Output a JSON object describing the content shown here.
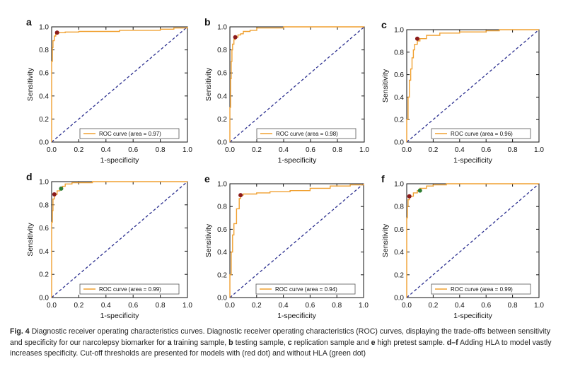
{
  "chart_data": [
    {
      "panel": "a",
      "type": "line",
      "xlabel": "1-specificity",
      "ylabel": "Sensitivity",
      "xlim": [
        0,
        1
      ],
      "ylim": [
        0,
        1
      ],
      "xticks": [
        "0.0",
        "0.2",
        "0.4",
        "0.6",
        "0.8",
        "1.0"
      ],
      "yticks": [
        "0.0",
        "0.2",
        "0.4",
        "0.6",
        "0.8",
        "1.0"
      ],
      "legend": "ROC curve (area = 0.97)",
      "roc": [
        [
          0,
          0
        ],
        [
          0,
          0.7
        ],
        [
          0.005,
          0.82
        ],
        [
          0.01,
          0.88
        ],
        [
          0.02,
          0.92
        ],
        [
          0.03,
          0.94
        ],
        [
          0.05,
          0.95
        ],
        [
          0.1,
          0.955
        ],
        [
          0.2,
          0.96
        ],
        [
          0.5,
          0.97
        ],
        [
          0.8,
          0.98
        ],
        [
          0.9,
          0.99
        ],
        [
          1,
          1
        ]
      ],
      "red_dot": [
        0.04,
        0.95
      ],
      "green_dot": null
    },
    {
      "panel": "b",
      "type": "line",
      "xlabel": "1-specificity",
      "ylabel": "Sensitivity",
      "xlim": [
        0,
        1
      ],
      "ylim": [
        0,
        1
      ],
      "xticks": [
        "0.0",
        "0.2",
        "0.4",
        "0.6",
        "0.8",
        "1.0"
      ],
      "yticks": [
        "0.0",
        "0.2",
        "0.4",
        "0.6",
        "0.8",
        "1.0"
      ],
      "legend": "ROC curve (area = 0.98)",
      "roc": [
        [
          0,
          0
        ],
        [
          0,
          0.3
        ],
        [
          0.005,
          0.55
        ],
        [
          0.01,
          0.7
        ],
        [
          0.015,
          0.8
        ],
        [
          0.02,
          0.85
        ],
        [
          0.03,
          0.89
        ],
        [
          0.04,
          0.91
        ],
        [
          0.06,
          0.93
        ],
        [
          0.08,
          0.94
        ],
        [
          0.1,
          0.96
        ],
        [
          0.15,
          0.97
        ],
        [
          0.2,
          0.99
        ],
        [
          0.4,
          1.0
        ],
        [
          1,
          1
        ]
      ],
      "red_dot": [
        0.04,
        0.91
      ],
      "green_dot": null
    },
    {
      "panel": "c",
      "type": "line",
      "xlabel": "1-specificity",
      "ylabel": "Sensitivity",
      "xlim": [
        0,
        1
      ],
      "ylim": [
        0,
        1
      ],
      "xticks": [
        "0.0",
        "0.2",
        "0.4",
        "0.6",
        "0.8",
        "1.0"
      ],
      "yticks": [
        "0.0",
        "0.2",
        "0.4",
        "0.6",
        "0.8",
        "1.0"
      ],
      "legend": "ROC curve (area = 0.96)",
      "roc": [
        [
          0,
          0
        ],
        [
          0,
          0.2
        ],
        [
          0.01,
          0.4
        ],
        [
          0.02,
          0.55
        ],
        [
          0.03,
          0.65
        ],
        [
          0.04,
          0.75
        ],
        [
          0.05,
          0.82
        ],
        [
          0.06,
          0.87
        ],
        [
          0.08,
          0.9
        ],
        [
          0.1,
          0.92
        ],
        [
          0.15,
          0.95
        ],
        [
          0.25,
          0.97
        ],
        [
          0.4,
          0.98
        ],
        [
          0.6,
          0.99
        ],
        [
          0.7,
          1.0
        ],
        [
          1,
          1
        ]
      ],
      "red_dot": [
        0.08,
        0.92
      ],
      "green_dot": null
    },
    {
      "panel": "d",
      "type": "line",
      "xlabel": "1-specificity",
      "ylabel": "Sensitivity",
      "xlim": [
        0,
        1
      ],
      "ylim": [
        0,
        1
      ],
      "xticks": [
        "0.0",
        "0.2",
        "0.4",
        "0.6",
        "0.8",
        "1.0"
      ],
      "yticks": [
        "0.0",
        "0.2",
        "0.4",
        "0.6",
        "0.8",
        "1.0"
      ],
      "legend": "ROC curve (area = 0.99)",
      "roc": [
        [
          0,
          0
        ],
        [
          0,
          0.65
        ],
        [
          0.005,
          0.75
        ],
        [
          0.01,
          0.85
        ],
        [
          0.02,
          0.89
        ],
        [
          0.04,
          0.92
        ],
        [
          0.06,
          0.94
        ],
        [
          0.08,
          0.96
        ],
        [
          0.1,
          0.98
        ],
        [
          0.15,
          0.99
        ],
        [
          0.3,
          1.0
        ],
        [
          1,
          1
        ]
      ],
      "red_dot": [
        0.02,
        0.89
      ],
      "green_dot": [
        0.07,
        0.94
      ]
    },
    {
      "panel": "e",
      "type": "line",
      "xlabel": "1-specificity",
      "ylabel": "Sensitivity",
      "xlim": [
        0,
        1
      ],
      "ylim": [
        0,
        1
      ],
      "xticks": [
        "0.0",
        "0.2",
        "0.4",
        "0.6",
        "0.8",
        "1.0"
      ],
      "yticks": [
        "0.0",
        "0.2",
        "0.4",
        "0.6",
        "0.8",
        "1.0"
      ],
      "legend": "ROC curve (area = 0.94)",
      "roc": [
        [
          0,
          0
        ],
        [
          0,
          0.2
        ],
        [
          0.01,
          0.4
        ],
        [
          0.02,
          0.55
        ],
        [
          0.03,
          0.65
        ],
        [
          0.05,
          0.78
        ],
        [
          0.07,
          0.87
        ],
        [
          0.08,
          0.9
        ],
        [
          0.1,
          0.91
        ],
        [
          0.2,
          0.92
        ],
        [
          0.3,
          0.93
        ],
        [
          0.45,
          0.94
        ],
        [
          0.6,
          0.96
        ],
        [
          0.75,
          0.98
        ],
        [
          0.9,
          0.99
        ],
        [
          1,
          1
        ]
      ],
      "red_dot": [
        0.08,
        0.9
      ],
      "green_dot": null
    },
    {
      "panel": "f",
      "type": "line",
      "xlabel": "1-specificity",
      "ylabel": "Sensitivity",
      "xlim": [
        0,
        1
      ],
      "ylim": [
        0,
        1
      ],
      "xticks": [
        "0.0",
        "0.2",
        "0.4",
        "0.6",
        "0.8",
        "1.0"
      ],
      "yticks": [
        "0.0",
        "0.2",
        "0.4",
        "0.6",
        "0.8",
        "1.0"
      ],
      "legend": "ROC curve (area = 0.99)",
      "roc": [
        [
          0,
          0
        ],
        [
          0,
          0.7
        ],
        [
          0.005,
          0.8
        ],
        [
          0.01,
          0.86
        ],
        [
          0.02,
          0.89
        ],
        [
          0.05,
          0.92
        ],
        [
          0.08,
          0.94
        ],
        [
          0.1,
          0.96
        ],
        [
          0.15,
          0.98
        ],
        [
          0.2,
          0.99
        ],
        [
          0.3,
          1.0
        ],
        [
          1,
          1
        ]
      ],
      "red_dot": [
        0.02,
        0.89
      ],
      "green_dot": [
        0.1,
        0.94
      ]
    }
  ],
  "colors": {
    "roc": "#f0a030",
    "diagonal": "#2b2f8f",
    "red_dot": "#8b1a1a",
    "green_dot": "#2e7d32",
    "axis": "#111111"
  },
  "caption": {
    "label": "Fig. 4",
    "text_1": " Diagnostic receiver operating characteristics curves. Diagnostic receiver operating characteristics (ROC) curves, displaying the trade-offs between sensitivity and specificity for our narcolepsy biomarker for ",
    "bold_a": "a",
    "text_2": " training sample, ",
    "bold_b": "b",
    "text_3": " testing sample, ",
    "bold_c": "c",
    "text_4": " replication sample and ",
    "bold_e": "e",
    "text_5": " high pretest sample. ",
    "bold_df": "d–f",
    "text_6": " Adding HLA to model vastly increases specificity. Cut-off thresholds are presented for models with (red dot) and without HLA (green dot)"
  }
}
